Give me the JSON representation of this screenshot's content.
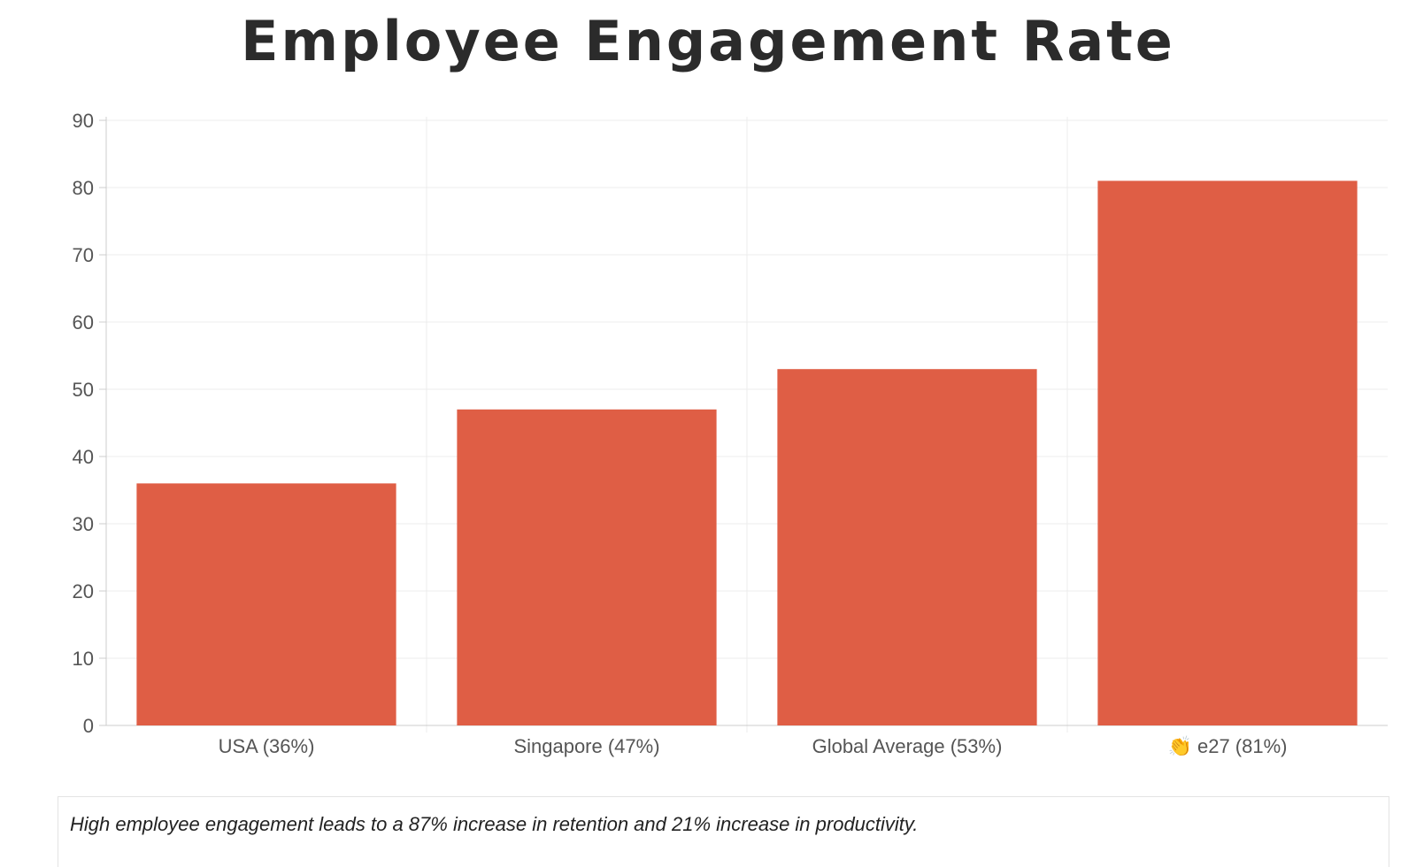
{
  "chart_data": {
    "type": "bar",
    "title": "Employee Engagement Rate",
    "categories": [
      "USA (36%)",
      "Singapore (47%)",
      "Global Average (53%)",
      "👏 e27 (81%)"
    ],
    "values": [
      36,
      47,
      53,
      81
    ],
    "ylim": [
      0,
      90
    ],
    "yticks": [
      "0",
      "10",
      "20",
      "30",
      "40",
      "50",
      "60",
      "70",
      "80",
      "90"
    ],
    "xlabel": "",
    "ylabel": "",
    "grid": true,
    "bar_color": "#df5e45"
  },
  "caption": "High employee engagement leads to a 87% increase in retention and 21% increase in productivity."
}
